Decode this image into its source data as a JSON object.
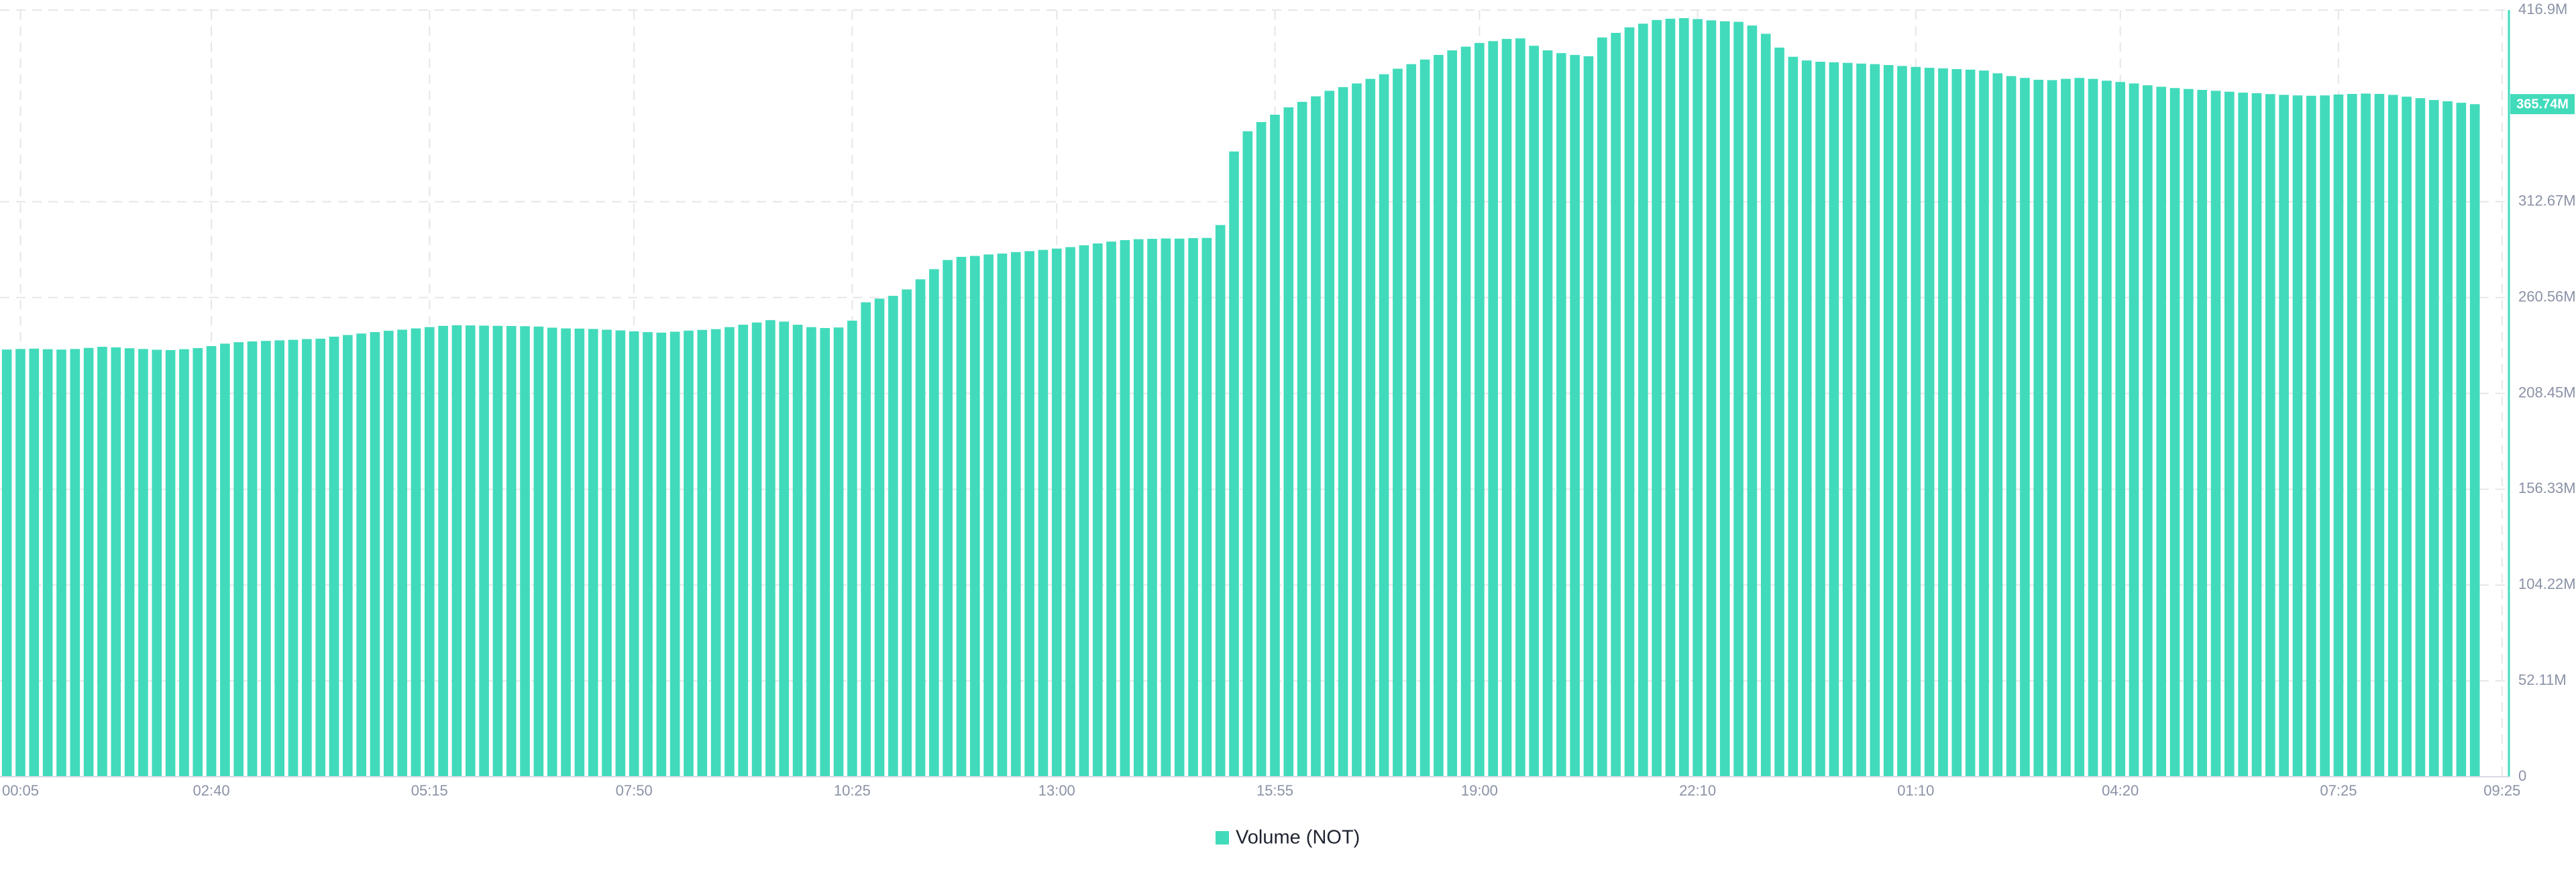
{
  "chart_data": {
    "type": "bar",
    "categories": [
      null,
      "00:05",
      null,
      null,
      null,
      null,
      null,
      null,
      null,
      null,
      null,
      null,
      null,
      null,
      null,
      "02:40",
      null,
      null,
      null,
      null,
      null,
      null,
      null,
      null,
      null,
      null,
      null,
      null,
      null,
      null,
      null,
      "05:15",
      null,
      null,
      null,
      null,
      null,
      null,
      null,
      null,
      null,
      null,
      null,
      null,
      null,
      null,
      "07:50",
      null,
      null,
      null,
      null,
      null,
      null,
      null,
      null,
      null,
      null,
      null,
      null,
      null,
      null,
      null,
      "10:25",
      null,
      null,
      null,
      null,
      null,
      null,
      null,
      null,
      null,
      null,
      null,
      null,
      null,
      null,
      "13:00",
      null,
      null,
      null,
      null,
      null,
      null,
      null,
      null,
      null,
      null,
      null,
      null,
      null,
      null,
      null,
      "15:55",
      null,
      null,
      null,
      null,
      null,
      null,
      null,
      null,
      null,
      null,
      null,
      null,
      null,
      null,
      "19:00",
      null,
      null,
      null,
      null,
      null,
      null,
      null,
      null,
      null,
      null,
      null,
      null,
      null,
      null,
      null,
      "22:10",
      null,
      null,
      null,
      null,
      null,
      null,
      null,
      null,
      null,
      null,
      null,
      null,
      null,
      null,
      null,
      "01:10",
      null,
      null,
      null,
      null,
      null,
      null,
      null,
      null,
      null,
      null,
      null,
      null,
      null,
      null,
      "04:20",
      null,
      null,
      null,
      null,
      null,
      null,
      null,
      null,
      null,
      null,
      null,
      null,
      null,
      null,
      null,
      "07:25",
      null,
      null,
      null,
      null,
      null,
      null,
      null,
      null,
      null,
      null,
      null,
      "09:25"
    ],
    "series": [
      {
        "name": "Volume (NOT)",
        "color": "#41dbbb",
        "values": [
          232.3,
          232.6,
          232.8,
          232.5,
          232.3,
          232.6,
          233.2,
          233.8,
          233.5,
          233.0,
          232.6,
          232.2,
          232.0,
          232.5,
          233.1,
          234.2,
          235.5,
          236.3,
          236.7,
          237.0,
          237.3,
          237.6,
          238.0,
          238.2,
          239.3,
          240.2,
          241.0,
          241.8,
          242.5,
          243.1,
          243.8,
          244.5,
          245.2,
          245.5,
          245.4,
          245.3,
          245.2,
          245.1,
          245.0,
          244.8,
          244.2,
          243.8,
          243.7,
          243.5,
          243.1,
          242.7,
          242.2,
          241.8,
          241.5,
          242.0,
          242.6,
          243.0,
          243.4,
          244.5,
          245.8,
          247.0,
          248.3,
          247.5,
          245.8,
          244.5,
          244.0,
          244.3,
          248.0,
          258.0,
          260.0,
          261.5,
          265.0,
          270.5,
          276.0,
          281.0,
          282.7,
          283.2,
          284.0,
          284.5,
          285.3,
          285.8,
          286.5,
          287.2,
          288.0,
          289.0,
          290.0,
          291.0,
          291.8,
          292.3,
          292.5,
          292.7,
          292.6,
          292.9,
          293.0,
          300.0,
          340.0,
          351.0,
          356.0,
          360.0,
          364.0,
          367.0,
          370.0,
          373.0,
          375.0,
          377.0,
          379.5,
          382.0,
          385.0,
          387.5,
          390.0,
          392.5,
          395.0,
          397.0,
          399.0,
          400.0,
          401.2,
          401.5,
          397.5,
          395.0,
          393.5,
          392.5,
          391.8,
          402.0,
          404.5,
          407.5,
          409.5,
          411.5,
          412.2,
          412.5,
          412.0,
          411.3,
          410.8,
          410.5,
          408.5,
          404.0,
          396.5,
          391.5,
          389.5,
          388.8,
          388.5,
          388.2,
          387.8,
          387.5,
          387.0,
          386.5,
          386.0,
          385.5,
          385.2,
          384.8,
          384.5,
          384.0,
          382.5,
          381.0,
          380.0,
          379.0,
          378.8,
          379.5,
          380.0,
          379.5,
          378.5,
          377.8,
          377.0,
          376.0,
          375.2,
          374.5,
          374.0,
          373.5,
          373.0,
          372.5,
          372.0,
          371.7,
          371.2,
          370.8,
          370.5,
          370.3,
          370.5,
          371.0,
          371.3,
          371.5,
          371.3,
          370.8,
          369.8,
          369.0,
          368.0,
          367.3,
          366.5,
          365.74,
          null,
          null
        ]
      }
    ],
    "ylim": [
      0,
      416.9
    ],
    "yticks": [
      0,
      {
        "value": 52.11,
        "label": "52.11M"
      },
      {
        "value": 104.22,
        "label": "104.22M"
      },
      {
        "value": 156.33,
        "label": "156.33M"
      },
      {
        "value": 208.45,
        "label": "208.45M"
      },
      {
        "value": 260.56,
        "label": "260.56M"
      },
      {
        "value": 312.67,
        "label": "312.67M"
      },
      {
        "value": 416.9,
        "label": "416.9M"
      }
    ],
    "current_value": {
      "value": 365.74,
      "label": "365.74M"
    },
    "grid": true
  }
}
